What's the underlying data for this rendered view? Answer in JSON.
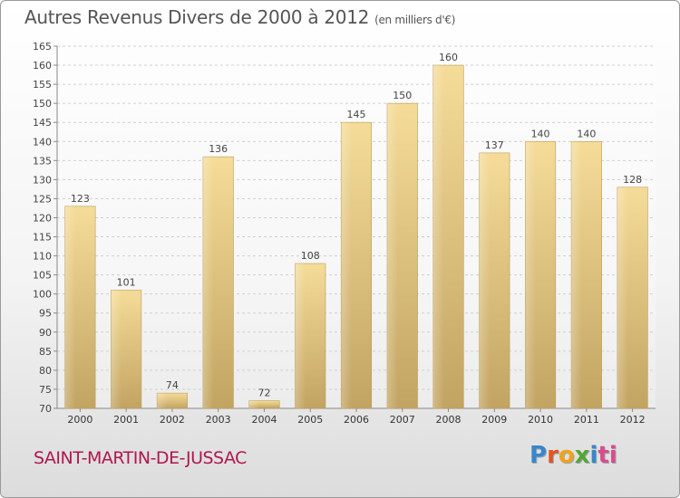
{
  "title": "Autres Revenus Divers de 2000 à 2012",
  "unit_note": "(en milliers d'€)",
  "commune": "SAINT-MARTIN-DE-JUSSAC",
  "logo": [
    "P",
    "r",
    "o",
    "x",
    "i",
    "ti"
  ],
  "chart_data": {
    "type": "bar",
    "title": "Autres Revenus Divers de 2000 à 2012",
    "subtitle": "(en milliers d'€)",
    "xlabel": "",
    "ylabel": "",
    "categories": [
      "2000",
      "2001",
      "2002",
      "2003",
      "2004",
      "2005",
      "2006",
      "2007",
      "2008",
      "2009",
      "2010",
      "2011",
      "2012"
    ],
    "values": [
      123,
      101,
      74,
      136,
      72,
      108,
      145,
      150,
      160,
      137,
      140,
      140,
      128
    ],
    "ylim": [
      70,
      165
    ],
    "yticks": [
      70,
      75,
      80,
      85,
      90,
      95,
      100,
      105,
      110,
      115,
      120,
      125,
      130,
      135,
      140,
      145,
      150,
      155,
      160,
      165
    ],
    "grid": true,
    "bar_color": "#efd38a",
    "bar_color_dark": "#c4a865"
  }
}
